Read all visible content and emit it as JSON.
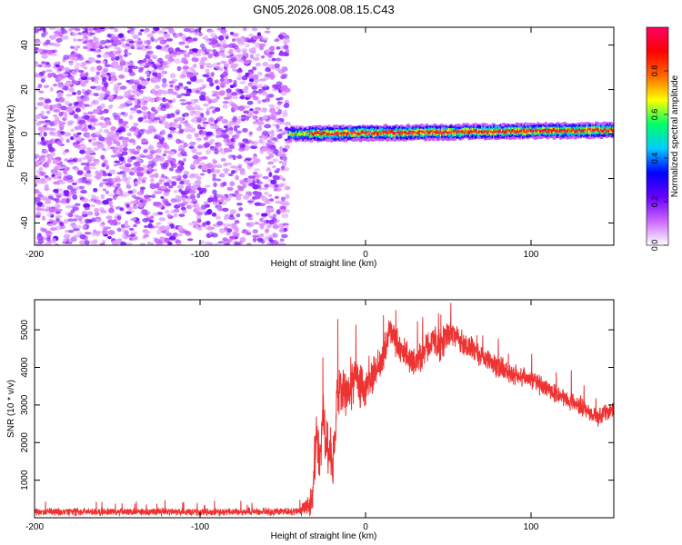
{
  "figure": {
    "title": "GN05.2026.008.08.15.C43"
  },
  "chart_data": [
    {
      "type": "heatmap",
      "title": "GN05.2026.008.08.15.C43",
      "xlabel": "Height of straight line (km)",
      "ylabel": "Frequency (Hz)",
      "xlim": [
        -200,
        150
      ],
      "ylim": [
        -50,
        48
      ],
      "x_ticks": [
        -200,
        -100,
        0,
        100
      ],
      "y_ticks": [
        -40,
        -20,
        0,
        20,
        40
      ],
      "colorbar": {
        "label": "Normalized spectral amplitude",
        "range": [
          0,
          1
        ],
        "ticks": [
          0.0,
          0.2,
          0.4,
          0.6,
          0.8
        ],
        "tick_labels": [
          "0.0",
          "0.2",
          "0.4",
          "0.6",
          "0.8"
        ],
        "colors": [
          "#ffffff",
          "#cc66ff",
          "#6600ff",
          "#0000ff",
          "#00ccff",
          "#00ff66",
          "#ffff00",
          "#ff6600",
          "#ff0000",
          "#ff0066"
        ]
      },
      "regions": [
        {
          "name": "noise",
          "x_range": [
            -200,
            -47
          ],
          "freq_range": [
            -50,
            48
          ],
          "amplitude_range": [
            0.0,
            0.15
          ]
        },
        {
          "name": "signal-band",
          "x_range": [
            -47,
            150
          ],
          "center_freq_hz": [
            0,
            3
          ],
          "peak_amplitude": 0.95
        }
      ]
    },
    {
      "type": "line",
      "xlabel": "Height of straight line (km)",
      "ylabel": "SNR (10 * v/v)",
      "xlim": [
        -200,
        150
      ],
      "ylim": [
        0,
        5800
      ],
      "x_ticks": [
        -200,
        -100,
        0,
        100
      ],
      "y_ticks": [
        1000,
        2000,
        3000,
        4000,
        5000
      ],
      "series": [
        {
          "name": "SNR",
          "color": "#ee3333",
          "x": [
            -200,
            -150,
            -100,
            -60,
            -40,
            -35,
            -32,
            -30,
            -28,
            -26,
            -24,
            -22,
            -20,
            -17,
            -15,
            -10,
            -7,
            -5,
            0,
            10,
            15,
            20,
            30,
            40,
            46,
            50,
            55,
            60,
            70,
            80,
            90,
            100,
            110,
            120,
            130,
            140,
            150
          ],
          "values": [
            150,
            160,
            150,
            160,
            170,
            300,
            500,
            2200,
            1600,
            2800,
            1900,
            1800,
            1200,
            3200,
            3400,
            3300,
            3700,
            3600,
            3400,
            4200,
            5100,
            4500,
            4100,
            4700,
            4600,
            4900,
            4800,
            4600,
            4300,
            4000,
            3800,
            3700,
            3400,
            3200,
            3000,
            2700,
            2900
          ],
          "noise_amplitude": [
            120,
            120,
            120,
            120,
            110,
            400,
            500,
            900,
            1200,
            900,
            900,
            900,
            900,
            900,
            900,
            700,
            700,
            700,
            600,
            500,
            500,
            500,
            500,
            500,
            500,
            400,
            400,
            400,
            350,
            350,
            350,
            300,
            300,
            300,
            300,
            300,
            300
          ]
        }
      ]
    }
  ]
}
